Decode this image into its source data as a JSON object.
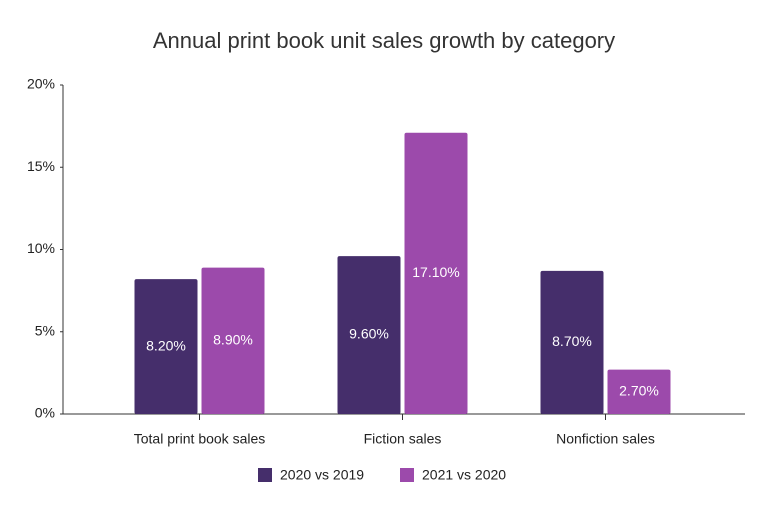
{
  "chart_data": {
    "type": "bar",
    "title": "Annual print book unit sales growth by category",
    "categories": [
      "Total print book sales",
      "Fiction sales",
      "Nonfiction sales"
    ],
    "series": [
      {
        "name": "2020 vs 2019",
        "color": "#452e6b",
        "values": [
          8.2,
          9.6,
          8.7
        ],
        "value_labels": [
          "8.20%",
          "9.60%",
          "8.70%"
        ]
      },
      {
        "name": "2021 vs 2020",
        "color": "#9c4aab",
        "values": [
          8.9,
          17.1,
          2.7
        ],
        "value_labels": [
          "8.90%",
          "17.10%",
          "2.70%"
        ]
      }
    ],
    "ylim": [
      0,
      20
    ],
    "yticks": [
      {
        "value": 0,
        "label": "0%"
      },
      {
        "value": 5,
        "label": "5%"
      },
      {
        "value": 10,
        "label": "10%"
      },
      {
        "value": 15,
        "label": "15%"
      },
      {
        "value": 20,
        "label": "20%"
      }
    ],
    "grid": false,
    "legend": "bottom"
  }
}
